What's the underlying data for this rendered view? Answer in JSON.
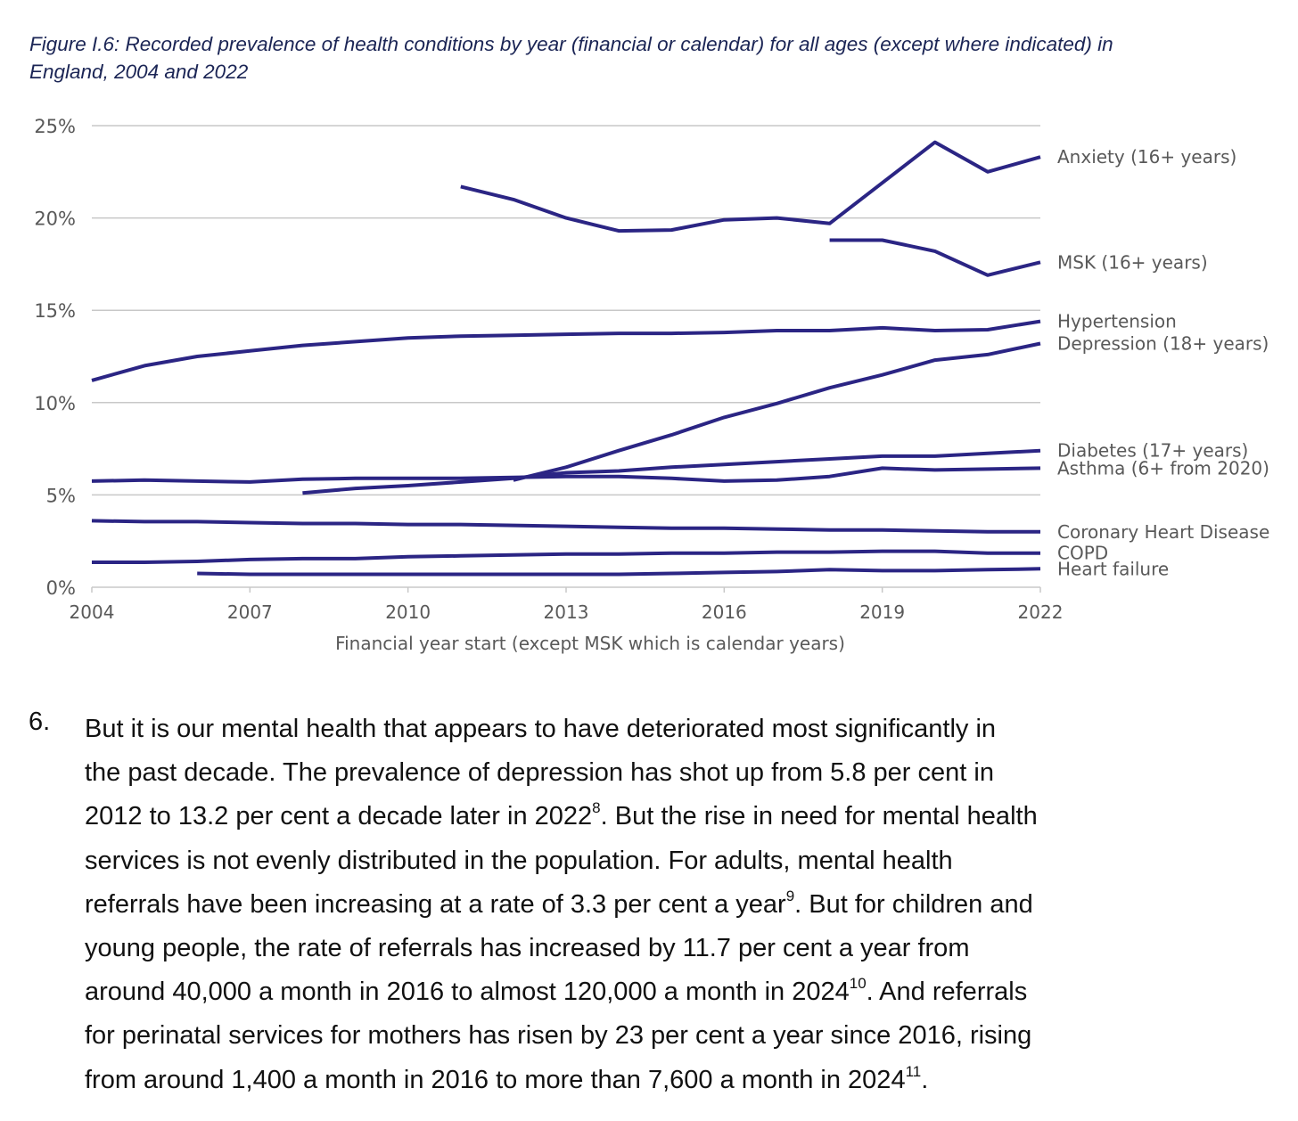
{
  "title": "Figure I.6: Recorded prevalence of health conditions by year (financial or calendar) for all ages (except where indicated) in England, 2004 and 2022",
  "colors": {
    "line": "#2b2584",
    "grid": "#c8c8c8",
    "text": "#595959"
  },
  "chart_data": {
    "type": "line",
    "title": "Figure I.6: Recorded prevalence of health conditions by year (financial or calendar) for all ages (except where indicated) in England, 2004 and 2022",
    "xlabel": "Financial year start (except MSK which is calendar years)",
    "ylabel": "",
    "xlim": [
      2004,
      2022
    ],
    "ylim": [
      0,
      25
    ],
    "x_ticks": [
      2004,
      2007,
      2010,
      2013,
      2016,
      2019,
      2022
    ],
    "x_tick_labels": [
      "2004",
      "2007",
      "2010",
      "2013",
      "2016",
      "2019",
      "2022"
    ],
    "y_ticks": [
      0,
      5,
      10,
      15,
      20,
      25
    ],
    "y_tick_labels": [
      "0%",
      "5%",
      "10%",
      "15%",
      "20%",
      "25%"
    ],
    "grid": true,
    "legend": "direct labels at right",
    "series": [
      {
        "name": "Anxiety (16+ years)",
        "start": 2011,
        "values": [
          21.7,
          21.0,
          20.0,
          19.3,
          19.35,
          19.9,
          20.0,
          19.7,
          21.9,
          24.1,
          22.5,
          23.3
        ]
      },
      {
        "name": "MSK (16+ years)",
        "start": 2018,
        "values": [
          18.8,
          18.8,
          18.2,
          16.9,
          17.6
        ]
      },
      {
        "name": "Hypertension",
        "start": 2004,
        "values": [
          11.2,
          12.0,
          12.5,
          12.8,
          13.1,
          13.3,
          13.5,
          13.6,
          13.65,
          13.7,
          13.75,
          13.75,
          13.8,
          13.9,
          13.9,
          14.05,
          13.9,
          13.95,
          14.4
        ]
      },
      {
        "name": "Depression (18+ years)",
        "start": 2012,
        "values": [
          5.8,
          6.5,
          7.4,
          8.25,
          9.2,
          9.95,
          10.8,
          11.5,
          12.3,
          12.6,
          13.2
        ]
      },
      {
        "name": "Diabetes (17+ years)",
        "start": 2008,
        "values": [
          5.1,
          5.35,
          5.5,
          5.7,
          5.9,
          6.2,
          6.3,
          6.5,
          6.65,
          6.8,
          6.95,
          7.1,
          7.1,
          7.25,
          7.4
        ]
      },
      {
        "name": "Asthma (6+ from 2020)",
        "start": 2004,
        "values": [
          5.75,
          5.8,
          5.75,
          5.7,
          5.85,
          5.9,
          5.9,
          5.9,
          5.95,
          6.0,
          6.0,
          5.9,
          5.75,
          5.8,
          6.0,
          6.45,
          6.35,
          6.4,
          6.45
        ]
      },
      {
        "name": "Coronary Heart Disease",
        "start": 2004,
        "values": [
          3.6,
          3.55,
          3.55,
          3.5,
          3.45,
          3.45,
          3.4,
          3.4,
          3.35,
          3.3,
          3.25,
          3.2,
          3.2,
          3.15,
          3.1,
          3.1,
          3.05,
          3.0,
          3.0
        ]
      },
      {
        "name": "COPD",
        "start": 2004,
        "values": [
          1.35,
          1.35,
          1.4,
          1.5,
          1.55,
          1.55,
          1.65,
          1.7,
          1.75,
          1.8,
          1.8,
          1.85,
          1.85,
          1.9,
          1.9,
          1.95,
          1.95,
          1.85,
          1.85
        ]
      },
      {
        "name": "Heart failure",
        "start": 2006,
        "values": [
          0.75,
          0.7,
          0.7,
          0.7,
          0.7,
          0.7,
          0.7,
          0.7,
          0.7,
          0.75,
          0.8,
          0.85,
          0.95,
          0.9,
          0.9,
          0.95,
          1.0
        ]
      }
    ]
  },
  "paragraph": {
    "number": "6.",
    "lines": [
      [
        {
          "t": "But it is our mental health that appears to have deteriorated most significantly in"
        }
      ],
      [
        {
          "t": "the past decade. The prevalence of depression has shot up from 5.8 per cent in"
        }
      ],
      [
        {
          "t": "2012 to 13.2 per cent a decade later in 2022"
        },
        {
          "t": "8",
          "sup": true
        },
        {
          "t": ". But the rise in need for mental health"
        }
      ],
      [
        {
          "t": "services is not evenly distributed in the population. For adults, mental health"
        }
      ],
      [
        {
          "t": "referrals have been increasing at a rate of 3.3 per cent a year"
        },
        {
          "t": "9",
          "sup": true
        },
        {
          "t": ". But for children and"
        }
      ],
      [
        {
          "t": "young people, the rate of referrals has increased by 11.7 per cent a year from"
        }
      ],
      [
        {
          "t": "around 40,000 a month in 2016 to almost 120,000 a month in 2024"
        },
        {
          "t": "10",
          "sup": true
        },
        {
          "t": ". And referrals"
        }
      ],
      [
        {
          "t": "for perinatal services for mothers has risen by 23 per cent a year since 2016, rising"
        }
      ],
      [
        {
          "t": "from around 1,400 a month in 2016 to more than 7,600 a month in 2024"
        },
        {
          "t": "11",
          "sup": true
        },
        {
          "t": "."
        }
      ]
    ]
  }
}
